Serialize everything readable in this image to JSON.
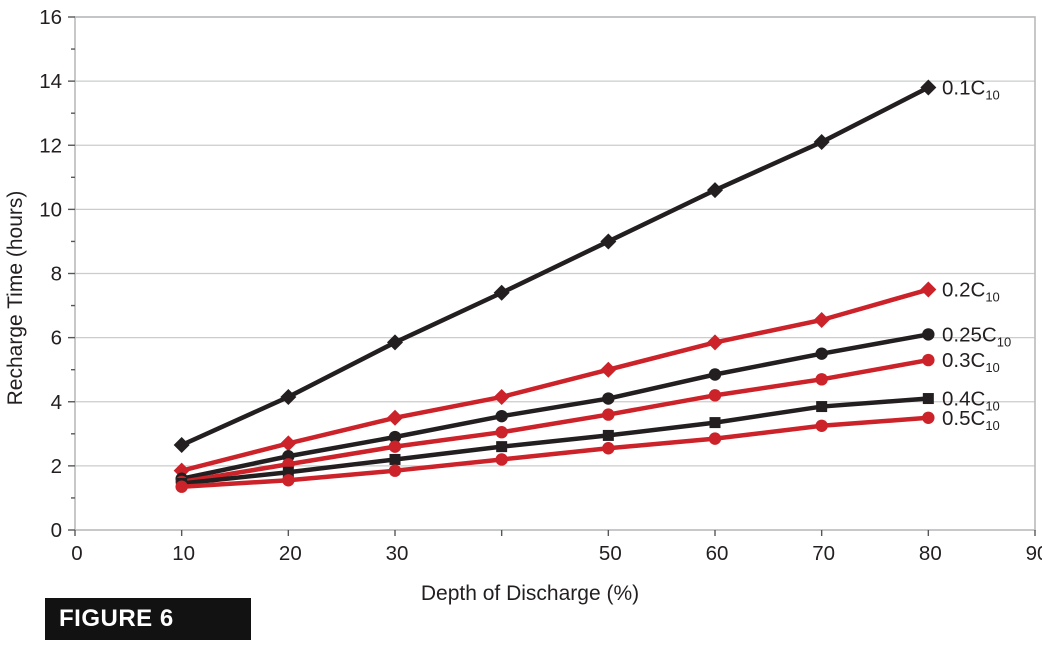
{
  "figure": {
    "caption": "FIGURE 6"
  },
  "chart_data": {
    "type": "line",
    "title": "",
    "xlabel": "Depth of Discharge (%)",
    "ylabel": "Recharge Time (hours)",
    "xlim": [
      0,
      90
    ],
    "ylim": [
      0,
      16
    ],
    "x_tick_values": [
      0,
      10,
      20,
      30,
      40,
      50,
      60,
      70,
      80,
      90
    ],
    "x_tick_labels": [
      "0",
      "10",
      "20",
      "30",
      "",
      "50",
      "60",
      "70",
      "80",
      "90"
    ],
    "y_tick_values": [
      0,
      2,
      4,
      6,
      8,
      10,
      12,
      14,
      16
    ],
    "y_tick_labels": [
      "0",
      "2",
      "4",
      "6",
      "8",
      "10",
      "12",
      "14",
      "16"
    ],
    "grid": "horizontal",
    "legend_position": "line-end-labels",
    "x": [
      10,
      20,
      30,
      40,
      50,
      60,
      70,
      80
    ],
    "series": [
      {
        "name": "0.1C",
        "subscript": "10",
        "color": "#231f20",
        "marker": "diamond",
        "values": [
          2.65,
          4.15,
          5.85,
          7.4,
          9.0,
          10.6,
          12.1,
          13.8
        ]
      },
      {
        "name": "0.2C",
        "subscript": "10",
        "color": "#cc2229",
        "marker": "diamond",
        "values": [
          1.85,
          2.7,
          3.5,
          4.15,
          5.0,
          5.85,
          6.55,
          7.5
        ]
      },
      {
        "name": "0.25C",
        "subscript": "10",
        "color": "#231f20",
        "marker": "circle",
        "values": [
          1.6,
          2.3,
          2.9,
          3.55,
          4.1,
          4.85,
          5.5,
          6.1
        ]
      },
      {
        "name": "0.3C",
        "subscript": "10",
        "color": "#cc2229",
        "marker": "circle",
        "values": [
          1.5,
          2.05,
          2.6,
          3.05,
          3.6,
          4.2,
          4.7,
          5.3
        ]
      },
      {
        "name": "0.4C",
        "subscript": "10",
        "color": "#231f20",
        "marker": "square",
        "values": [
          1.45,
          1.8,
          2.2,
          2.6,
          2.95,
          3.35,
          3.85,
          4.1
        ]
      },
      {
        "name": "0.5C",
        "subscript": "10",
        "color": "#cc2229",
        "marker": "circle",
        "values": [
          1.35,
          1.55,
          1.85,
          2.2,
          2.55,
          2.85,
          3.25,
          3.5
        ]
      }
    ],
    "colors": {
      "series_black": "#231f20",
      "series_red": "#cc2229",
      "gridline": "#cbccce",
      "axis_border": "#b9babc",
      "tick_text": "#231f20",
      "caption_bg": "#121212",
      "caption_text": "#ffffff"
    }
  }
}
